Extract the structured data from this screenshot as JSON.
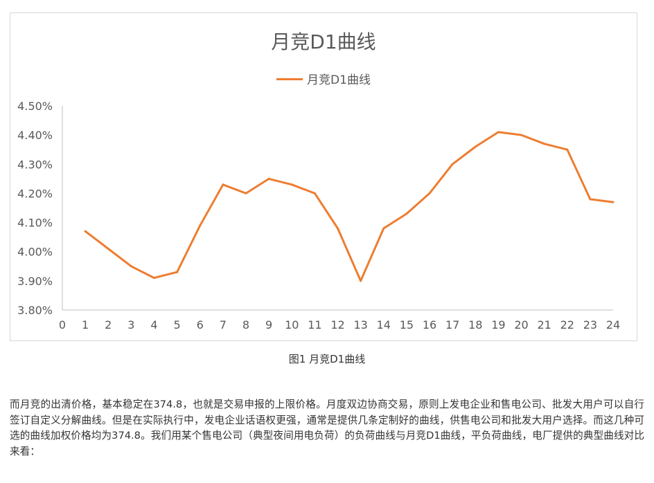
{
  "chart_data": {
    "type": "line",
    "title": "月竞D1曲线",
    "xlabel": "",
    "ylabel": "",
    "legend": "top-center",
    "grid": false,
    "x_ticks": [
      "0",
      "1",
      "2",
      "3",
      "4",
      "5",
      "6",
      "7",
      "8",
      "9",
      "10",
      "11",
      "12",
      "13",
      "14",
      "15",
      "16",
      "17",
      "18",
      "19",
      "20",
      "21",
      "22",
      "23",
      "24"
    ],
    "y_ticks": [
      "4.50%",
      "4.40%",
      "4.30%",
      "4.20%",
      "4.10%",
      "4.00%",
      "3.90%",
      "3.80%"
    ],
    "xlim": [
      0,
      24
    ],
    "ylim": [
      3.8,
      4.5
    ],
    "series": [
      {
        "name": "月竞D1曲线",
        "color": "#ED7D31",
        "x": [
          1,
          2,
          3,
          4,
          5,
          6,
          7,
          8,
          9,
          10,
          11,
          12,
          13,
          14,
          15,
          16,
          17,
          18,
          19,
          20,
          21,
          22,
          23,
          24
        ],
        "values": [
          4.07,
          4.01,
          3.95,
          3.91,
          3.93,
          4.09,
          4.23,
          4.2,
          4.25,
          4.23,
          4.2,
          4.08,
          3.9,
          4.08,
          4.13,
          4.2,
          4.3,
          4.36,
          4.41,
          4.4,
          4.37,
          4.35,
          4.18,
          4.17
        ]
      }
    ]
  },
  "caption": "图1   月竞D1曲线",
  "paragraph": "而月竞的出清价格，基本稳定在374.8，也就是交易申报的上限价格。月度双边协商交易，原则上发电企业和售电公司、批发大用户可以自行签订自定义分解曲线。但是在实际执行中，发电企业话语权更强，通常是提供几条定制好的曲线，供售电公司和批发大用户选择。而这几种可选的曲线加权价格均为374.8。我们用某个售电公司（典型夜间用电负荷）的负荷曲线与月竞D1曲线，平负荷曲线，电厂提供的典型曲线对比来看："
}
